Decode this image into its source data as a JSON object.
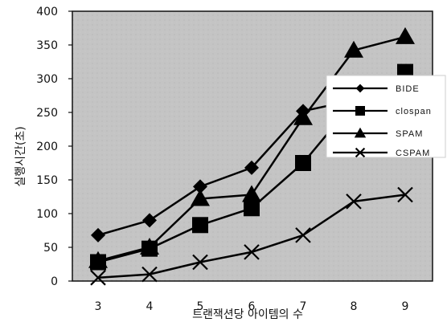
{
  "chart_data": {
    "type": "line",
    "title": "",
    "xlabel": "트랜잭션당 아이템의 수",
    "ylabel": "실행시간(초)",
    "categories": [
      "3",
      "4",
      "5",
      "6",
      "7",
      "8",
      "9"
    ],
    "xlim": [
      3,
      9
    ],
    "ylim": [
      0,
      400
    ],
    "yticks": [
      "0",
      "50",
      "100",
      "150",
      "200",
      "250",
      "300",
      "350",
      "400"
    ],
    "grid": false,
    "legend_position": "right",
    "series": [
      {
        "name": "BIDE",
        "marker": "diamond",
        "values": [
          68,
          90,
          140,
          168,
          252,
          268,
          275
        ]
      },
      {
        "name": "clospan",
        "marker": "square",
        "values": [
          28,
          48,
          83,
          108,
          175,
          265,
          310
        ]
      },
      {
        "name": "SPAM",
        "marker": "triangle",
        "values": [
          30,
          50,
          122,
          128,
          242,
          342,
          362
        ]
      },
      {
        "name": "CSPAM",
        "marker": "x",
        "values": [
          5,
          10,
          28,
          43,
          68,
          118,
          128
        ]
      }
    ]
  }
}
